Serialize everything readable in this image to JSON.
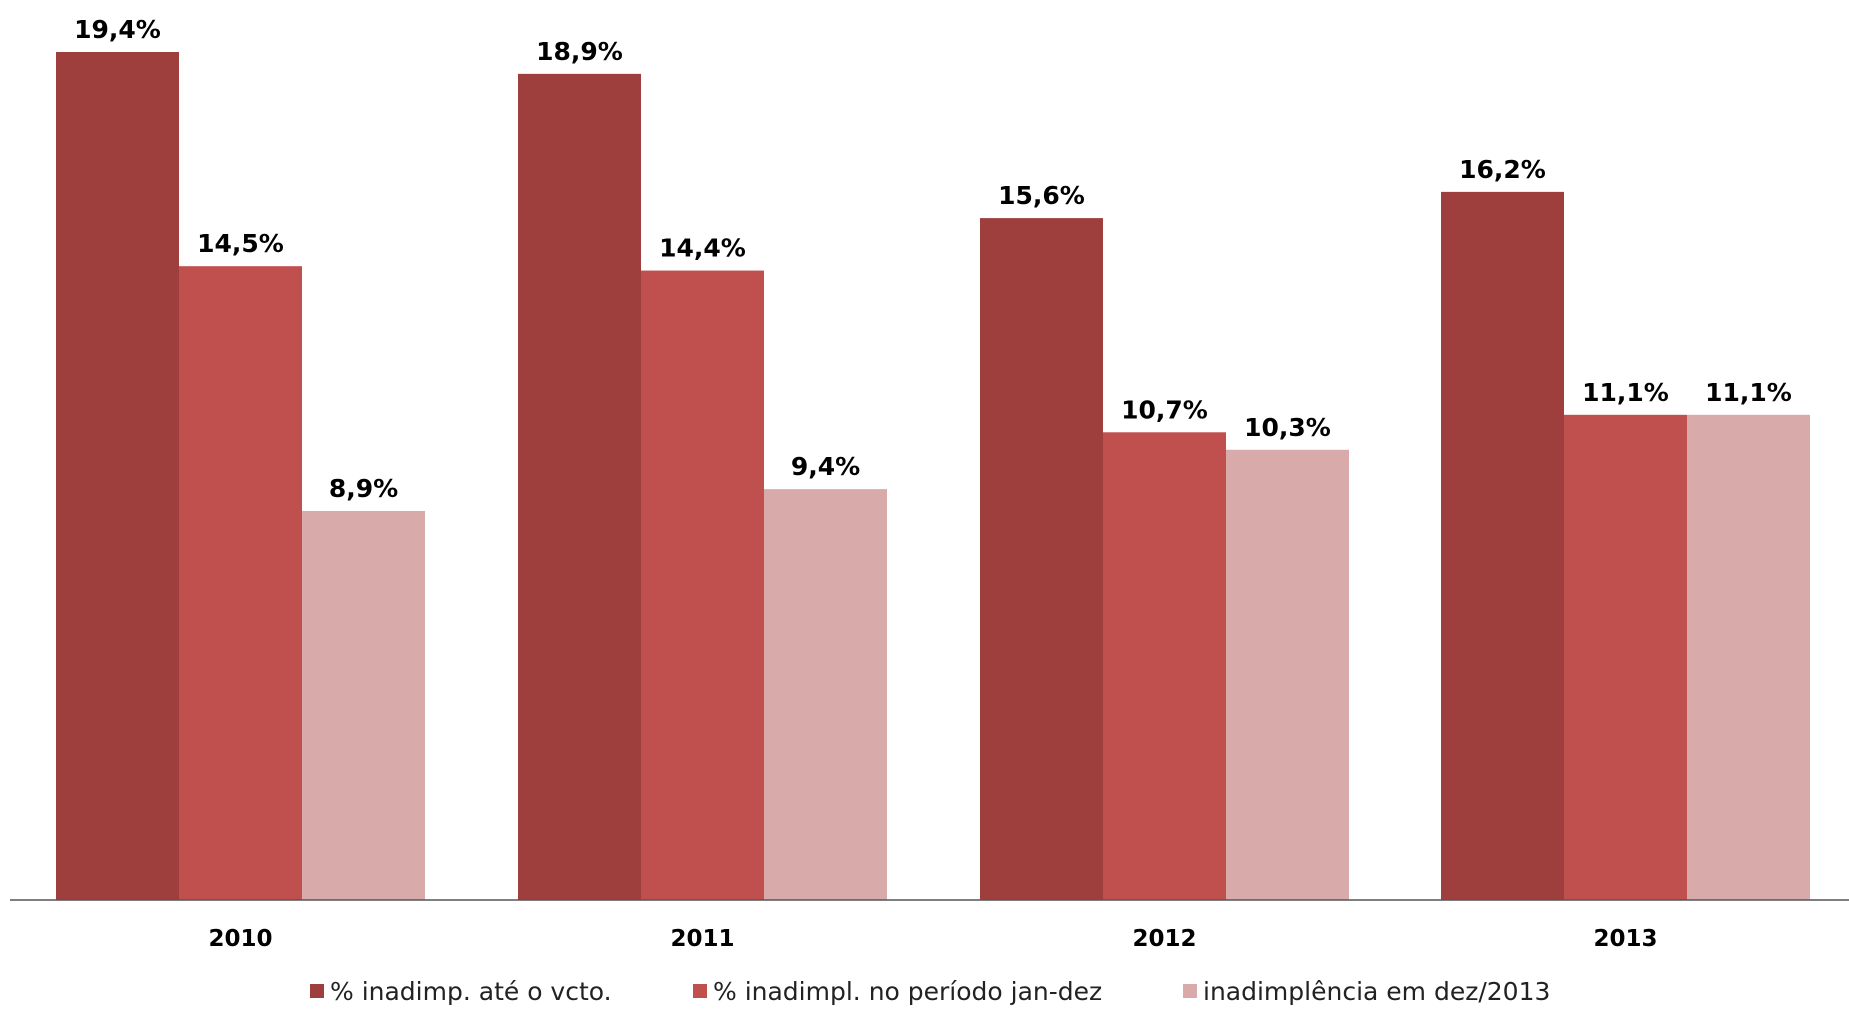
{
  "chart_data": {
    "type": "bar",
    "categories": [
      "2010",
      "2011",
      "2012",
      "2013"
    ],
    "series": [
      {
        "name": "% inadimp. até o vcto.",
        "values": [
          19.4,
          18.9,
          15.6,
          16.2
        ],
        "labels": [
          "19,4%",
          "18,9%",
          "15,6%",
          "16,2%"
        ],
        "color": "#9e3f3d"
      },
      {
        "name": "% inadimpl. no período jan-dez",
        "values": [
          14.5,
          14.4,
          10.7,
          11.1
        ],
        "labels": [
          "14,5%",
          "14,4%",
          "10,7%",
          "11,1%"
        ],
        "color": "#c0504d"
      },
      {
        "name": "inadimplência em dez/2013",
        "values": [
          8.9,
          9.4,
          10.3,
          11.1
        ],
        "labels": [
          "8,9%",
          "9,4%",
          "10,3%",
          "11,1%"
        ],
        "color": "#d9aaaa"
      }
    ],
    "ylim": [
      0,
      19.4
    ],
    "grid": false,
    "legend_position": "bottom",
    "axis_color": "#555555"
  }
}
